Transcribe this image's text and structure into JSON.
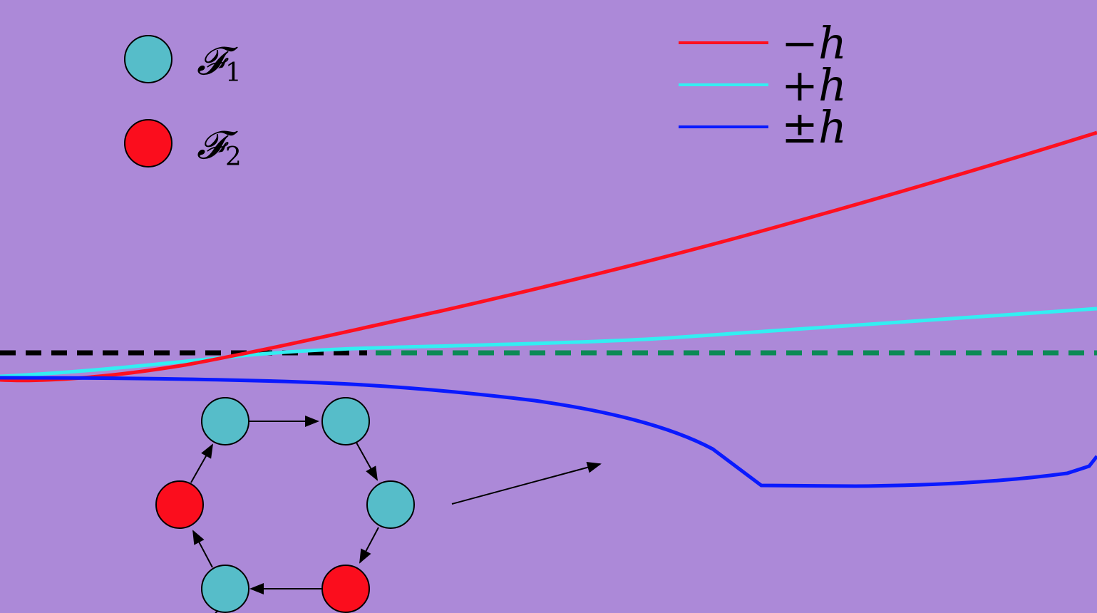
{
  "colors": {
    "background": "#ac89d8",
    "minus_h": "#ff1020",
    "plus_h": "#33eef2",
    "pm_h": "#0a1aff",
    "node_f1": "#56bdc9",
    "node_f2": "#fb0d1d",
    "ref_black": "#000000",
    "ref_green": "#0b8a55"
  },
  "node_legend": [
    {
      "symbol": "𝓕",
      "subscript": "1",
      "color_key": "node_f1"
    },
    {
      "symbol": "𝓕",
      "subscript": "2",
      "color_key": "node_f2"
    }
  ],
  "line_legend": [
    {
      "label": "−h",
      "color_key": "minus_h"
    },
    {
      "label": "+h",
      "color_key": "plus_h"
    },
    {
      "label": "±h",
      "color_key": "pm_h"
    }
  ],
  "ring": {
    "nodes": [
      {
        "id": "top-left",
        "type": "F1"
      },
      {
        "id": "top-right",
        "type": "F1"
      },
      {
        "id": "right",
        "type": "F1"
      },
      {
        "id": "bottom-right",
        "type": "F2"
      },
      {
        "id": "bottom-left",
        "type": "F1"
      },
      {
        "id": "left",
        "type": "F2"
      }
    ],
    "direction": "clockwise"
  }
}
